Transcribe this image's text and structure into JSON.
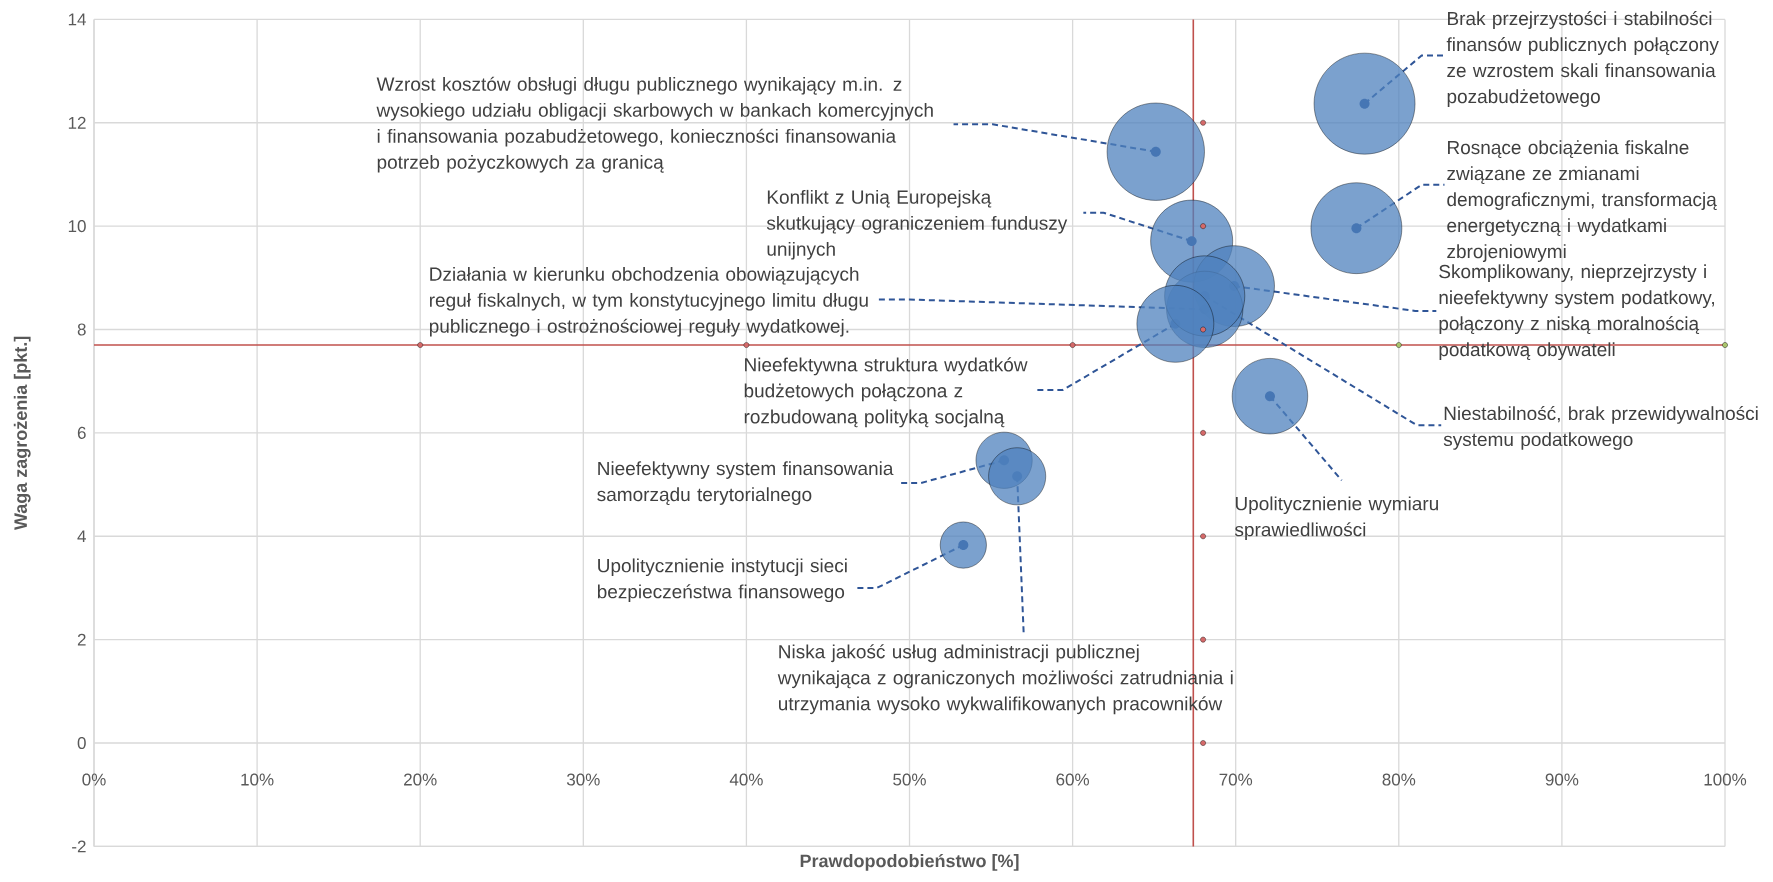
{
  "chart_data": {
    "type": "bubble",
    "xlabel": "Prawdopodobieństwo [%]",
    "ylabel": "Waga zagrożenia [pkt.]",
    "xlim": [
      0,
      100
    ],
    "xticks": [
      {
        "value": 0,
        "label": "0%"
      },
      {
        "value": 10,
        "label": "10%"
      },
      {
        "value": 20,
        "label": "20%"
      },
      {
        "value": 30,
        "label": "30%"
      },
      {
        "value": 40,
        "label": "40%"
      },
      {
        "value": 50,
        "label": "50%"
      },
      {
        "value": 60,
        "label": "60%"
      },
      {
        "value": 70,
        "label": "70%"
      },
      {
        "value": 80,
        "label": "80%"
      },
      {
        "value": 90,
        "label": "90%"
      },
      {
        "value": 100,
        "label": "100%"
      }
    ],
    "ylim": [
      -2,
      14
    ],
    "yticks": [
      -2,
      0,
      2,
      4,
      6,
      8,
      10,
      12,
      14
    ],
    "grid": true,
    "series": [
      {
        "type": "bubble",
        "color": "#4f81bd",
        "x": [
          77.9,
          65.1,
          77.4,
          67.3,
          69.9,
          68.1,
          68.1,
          66.3,
          72.1,
          55.8,
          56.6,
          53.3
        ],
        "values": [
          12.37,
          11.44,
          9.96,
          9.71,
          8.84,
          8.39,
          8.65,
          8.11,
          6.71,
          5.47,
          5.16,
          3.83
        ],
        "sizes": [
          1,
          0.93,
          0.81,
          0.66,
          0.64,
          0.57,
          0.63,
          0.58,
          0.56,
          0.31,
          0.32,
          0.21
        ]
      },
      {
        "type": "scatter",
        "marker": "circle",
        "x": [
          68,
          68,
          68,
          68,
          68,
          68,
          68,
          20,
          40,
          60,
          80,
          100
        ],
        "values": [
          0,
          2,
          4,
          6,
          8,
          10,
          12,
          7.7,
          7.7,
          7.7,
          7.7,
          7.7
        ],
        "colors": [
          "#d46a6a",
          "#d46a6a",
          "#d46a6a",
          "#d46a6a",
          "#d46a6a",
          "#d46a6a",
          "#d46a6a",
          "#d46a6a",
          "#d46a6a",
          "#d46a6a",
          "#a9c46c",
          "#a9c46c"
        ]
      }
    ],
    "ref_lines": [
      {
        "axis": "y",
        "value": 7.7,
        "color": "#c0504d"
      },
      {
        "axis": "x",
        "value": 67.4,
        "color": "#c0504d"
      }
    ],
    "annotations": [
      {
        "text": "Brak przejrzystości i stabilności finansów publicznych połączony ze wzrostem skali finansowania pozabudżetowego",
        "x": 77.9,
        "y": 12.37
      },
      {
        "text": "Wzrost kosztów obsługi długu publicznego wynikający m.in. z wysokiego udziału obligacji skarbowych w bankach komercyjnych i finansowania pozabudżetowego, konieczności finansowania potrzeb pożyczkowych za granicą",
        "x": 65.1,
        "y": 11.44
      },
      {
        "text": "Rosnące obciążenia fiskalne związane ze zmianami demograficznymi, transformacją energetyczną i wydatkami zbrojeniowymi",
        "x": 77.4,
        "y": 9.96
      },
      {
        "text": "Konflikt z Unią Europejską skutkujący ograniczeniem funduszy unijnych",
        "x": 67.3,
        "y": 9.71
      },
      {
        "text": "Skomplikowany, nieprzejrzysty i nieefektywny system podatkowy, połączony z niską moralnością podatkową obywateli",
        "x": 69.9,
        "y": 8.84
      },
      {
        "text": "Działania w kierunku obchodzenia obowiązujących reguł fiskalnych, w tym konstytucyjnego limitu długu publicznego i ostrożnościowej reguły wydatkowej.",
        "x": 68.1,
        "y": 8.39
      },
      {
        "text": "Niestabilność, brak przewidywalności systemu podatkowego",
        "x": 68.1,
        "y": 8.65
      },
      {
        "text": "Nieefektywna struktura wydatków budżetowych połączona z rozbudowaną polityką socjalną",
        "x": 66.3,
        "y": 8.11
      },
      {
        "text": "Upolitycznienie wymiaru sprawiedliwości",
        "x": 72.1,
        "y": 6.71
      },
      {
        "text": "Nieefektywny system finansowania samorządu terytorialnego",
        "x": 55.8,
        "y": 5.47
      },
      {
        "text": "Niska jakość usług administracji publicznej wynikająca z ograniczonych możliwości zatrudniania i utrzymania wysoko wykwalifikowanych pracowników",
        "x": 56.6,
        "y": 5.16
      },
      {
        "text": "Upolitycznienie instytucji sieci bezpieczeństwa finansowego",
        "x": 53.3,
        "y": 3.83
      }
    ]
  }
}
